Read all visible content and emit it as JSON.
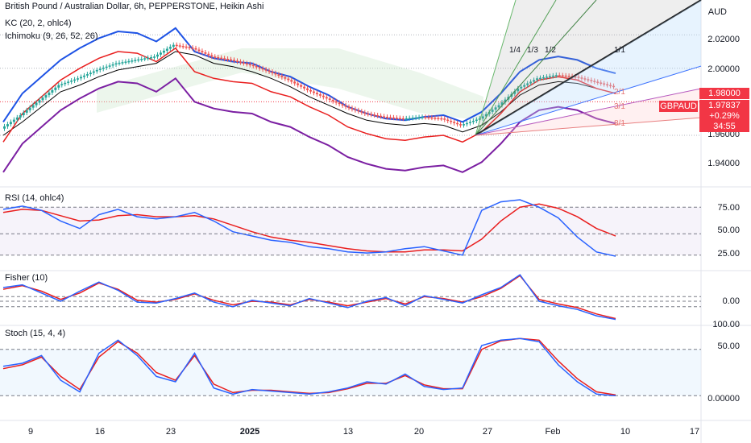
{
  "header": {
    "title": "British Pound / Australian Dollar, 6h, PEPPERSTONE, Heikin Ashi",
    "kc": "KC (20, 2, ohlc4)",
    "ichimoku": "Ichimoku (9, 26, 52, 26)"
  },
  "currency": "AUD",
  "price_axis": [
    "2.02000",
    "2.00000",
    "1.96000",
    "1.94000"
  ],
  "price_tag_top": "1.98000",
  "symbol_tag": "GBPAUD",
  "last_price": "1.97837",
  "change": "+0.29%",
  "countdown": "34:55",
  "rsi": {
    "label": "RSI (14, ohlc4)",
    "ticks": [
      "75.00",
      "50.00",
      "25.00"
    ]
  },
  "fisher": {
    "label": "Fisher (10)",
    "ticks": [
      "0.00"
    ]
  },
  "stoch": {
    "label": "Stoch (15, 4, 4)",
    "ticks": [
      "100.00",
      "50.00",
      "0.00000"
    ]
  },
  "fan_labels": [
    "1/4",
    "1/3",
    "1/2",
    "1/1",
    "2/1",
    "3/1",
    "8/1"
  ],
  "x_axis": [
    "9",
    "16",
    "23",
    "2025",
    "13",
    "20",
    "27",
    "Feb",
    "10",
    "17"
  ],
  "colors": {
    "up": "#26a69a",
    "down": "#ef5350",
    "kc": "#1e53e5",
    "kc_mid": "#000000",
    "ichimoku_red": "#e91e1e",
    "ichimoku_purple": "#7b1fa2",
    "rsi_line": "#2962ff",
    "rsi_ma": "#e91e1e",
    "fisher_a": "#2962ff",
    "fisher_b": "#e91e1e",
    "tag": "#f23645"
  },
  "chart_data": [
    {
      "type": "line",
      "title": "British Pound / Australian Dollar, 6h, PEPPERSTONE, Heikin Ashi",
      "ylim": [
        1.93,
        2.04
      ],
      "series": [
        {
          "name": "KC (20, 2, ohlc4)",
          "values": [
            1.968,
            1.985,
            1.995,
            2.005,
            2.012,
            2.018,
            2.022,
            2.021,
            2.016,
            2.024,
            2.01,
            2.006,
            2.004,
            2.003,
            1.998,
            1.995,
            1.989,
            1.984,
            1.977,
            1.973,
            1.97,
            1.969,
            1.971,
            1.972,
            1.968,
            1.974,
            1.985,
            1.998,
            2.005,
            2.007,
            2.005,
            2.0,
            1.997
          ]
        },
        {
          "name": "Ichimoku (9, 26, 52, 26)",
          "values": [
            1.96,
            1.968,
            1.977,
            1.986,
            1.99,
            1.995,
            1.999,
            2.001,
            2.003,
            2.01,
            2.008,
            2.003,
            2.001,
            1.998,
            1.994,
            1.989,
            1.983,
            1.978,
            1.973,
            1.969,
            1.967,
            1.966,
            1.967,
            1.966,
            1.962,
            1.966,
            1.974,
            1.984,
            1.99,
            1.992,
            1.991,
            1.988,
            1.985
          ]
        }
      ],
      "last": 1.97837
    },
    {
      "type": "line",
      "title": "RSI (14, ohlc4)",
      "ylim": [
        20,
        85
      ],
      "series": [
        {
          "values": [
            73,
            76,
            72,
            62,
            55,
            68,
            73,
            66,
            64,
            66,
            70,
            62,
            52,
            48,
            44,
            42,
            38,
            36,
            33,
            32,
            33,
            36,
            38,
            34,
            30,
            72,
            80,
            82,
            75,
            65,
            47,
            33,
            29
          ]
        },
        {
          "values": [
            70,
            73,
            72,
            67,
            62,
            63,
            67,
            68,
            66,
            66,
            67,
            64,
            58,
            52,
            47,
            44,
            42,
            39,
            36,
            34,
            33,
            33,
            35,
            35,
            34,
            45,
            62,
            75,
            78,
            74,
            66,
            55,
            48
          ]
        }
      ]
    },
    {
      "type": "line",
      "title": "Fisher (10)",
      "series": [
        {
          "values": [
            1.8,
            2.1,
            1.2,
            0.3,
            1.4,
            2.4,
            1.5,
            0.2,
            0.1,
            0.6,
            1.2,
            0.2,
            -0.3,
            0.4,
            0.1,
            -0.2,
            0.6,
            0.1,
            -0.4,
            0.3,
            0.7,
            -0.2,
            0.9,
            0.5,
            0.1,
            1.0,
            1.8,
            3.2,
            0.3,
            -0.2,
            -0.6,
            -1.3,
            -1.7
          ]
        },
        {
          "values": [
            1.6,
            2.0,
            1.4,
            0.5,
            1.2,
            2.3,
            1.6,
            0.4,
            0.2,
            0.5,
            1.1,
            0.4,
            -0.1,
            0.3,
            0.2,
            -0.1,
            0.5,
            0.2,
            -0.2,
            0.2,
            0.6,
            0.0,
            0.8,
            0.6,
            0.2,
            0.8,
            1.7,
            3.1,
            0.5,
            0.0,
            -0.4,
            -1.1,
            -1.6
          ]
        }
      ]
    },
    {
      "type": "line",
      "title": "Stoch (15, 4, 4)",
      "ylim": [
        -10,
        110
      ],
      "series": [
        {
          "values": [
            58,
            62,
            72,
            40,
            25,
            75,
            92,
            72,
            45,
            38,
            75,
            30,
            22,
            28,
            26,
            24,
            22,
            25,
            30,
            38,
            35,
            48,
            32,
            28,
            30,
            85,
            92,
            94,
            90,
            60,
            38,
            22,
            20
          ]
        },
        {
          "values": [
            55,
            60,
            70,
            45,
            28,
            70,
            90,
            75,
            50,
            40,
            72,
            35,
            24,
            27,
            27,
            25,
            23,
            24,
            29,
            36,
            36,
            46,
            34,
            29,
            29,
            80,
            91,
            94,
            92,
            65,
            42,
            25,
            21
          ]
        }
      ]
    }
  ]
}
